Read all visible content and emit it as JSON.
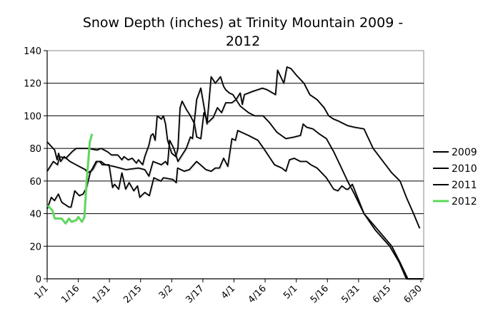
{
  "chart_data": {
    "type": "line",
    "title_lines": [
      "Snow Depth (inches) at Trinity Mountain 2009 -",
      "2012"
    ],
    "xlabel": "",
    "ylabel": "",
    "x_unit": "days since Jan 1",
    "xlim": [
      0,
      181.5
    ],
    "ylim": [
      0,
      140
    ],
    "yticks": [
      0,
      20,
      40,
      60,
      80,
      100,
      120,
      140
    ],
    "xticks": [
      {
        "day": 0,
        "label": "1/1"
      },
      {
        "day": 15,
        "label": "1/16"
      },
      {
        "day": 30,
        "label": "1/31"
      },
      {
        "day": 45,
        "label": "2/15"
      },
      {
        "day": 60,
        "label": "3/2"
      },
      {
        "day": 75,
        "label": "3/17"
      },
      {
        "day": 90,
        "label": "4/1"
      },
      {
        "day": 105,
        "label": "4/16"
      },
      {
        "day": 120,
        "label": "5/1"
      },
      {
        "day": 135,
        "label": "5/16"
      },
      {
        "day": 150,
        "label": "5/31"
      },
      {
        "day": 165,
        "label": "6/15"
      },
      {
        "day": 180,
        "label": "6/30"
      }
    ],
    "grid": "horizontal",
    "legend_position": "right",
    "series": [
      {
        "name": "2009",
        "color": "#000000",
        "points": [
          [
            0,
            66
          ],
          [
            3,
            72
          ],
          [
            5,
            70
          ],
          [
            6,
            75
          ],
          [
            9,
            74
          ],
          [
            12,
            78
          ],
          [
            14,
            80
          ],
          [
            20,
            80
          ],
          [
            24,
            79
          ],
          [
            26,
            80
          ],
          [
            29,
            78
          ],
          [
            31,
            76
          ],
          [
            34,
            76
          ],
          [
            36,
            73
          ],
          [
            37,
            75
          ],
          [
            39,
            73
          ],
          [
            41,
            74
          ],
          [
            43,
            71
          ],
          [
            44,
            73
          ],
          [
            46,
            70
          ],
          [
            47,
            75
          ],
          [
            49,
            82
          ],
          [
            50,
            88
          ],
          [
            51,
            89
          ],
          [
            52,
            85
          ],
          [
            53,
            100
          ],
          [
            55,
            98
          ],
          [
            56,
            100
          ],
          [
            57,
            95
          ],
          [
            58,
            85
          ],
          [
            60,
            77
          ],
          [
            62,
            75
          ],
          [
            63,
            80
          ],
          [
            64,
            105
          ],
          [
            65,
            109
          ],
          [
            67,
            104
          ],
          [
            69,
            100
          ],
          [
            71,
            95
          ],
          [
            72,
            87
          ],
          [
            74,
            86
          ],
          [
            75.5,
            102
          ],
          [
            77.5,
            96
          ],
          [
            80,
            99
          ],
          [
            82,
            105
          ],
          [
            84,
            102
          ],
          [
            86,
            108
          ],
          [
            89,
            108
          ],
          [
            91,
            110
          ],
          [
            93,
            114
          ],
          [
            94,
            107
          ],
          [
            95,
            113
          ],
          [
            99,
            115
          ],
          [
            103.7,
            117
          ],
          [
            106,
            116
          ],
          [
            110,
            113
          ],
          [
            111,
            128
          ],
          [
            114,
            120
          ],
          [
            115.5,
            130
          ],
          [
            117.4,
            129
          ],
          [
            120,
            125
          ],
          [
            123.7,
            120
          ],
          [
            126.5,
            113
          ],
          [
            130,
            110
          ],
          [
            133.4,
            105
          ],
          [
            135.6,
            100
          ],
          [
            138,
            98
          ],
          [
            140,
            97
          ],
          [
            144.7,
            94
          ],
          [
            148,
            93
          ],
          [
            152.6,
            92
          ],
          [
            157,
            80
          ],
          [
            163,
            70
          ],
          [
            166,
            65
          ],
          [
            170,
            60
          ],
          [
            173,
            50
          ],
          [
            176.5,
            40
          ],
          [
            179.4,
            31
          ]
        ]
      },
      {
        "name": "2010",
        "color": "#000000",
        "points": [
          [
            0,
            84
          ],
          [
            3.6,
            79
          ],
          [
            4.8,
            73
          ],
          [
            5.5,
            77
          ],
          [
            6.5,
            72
          ],
          [
            8.2,
            75
          ],
          [
            11,
            72
          ],
          [
            13.9,
            70
          ],
          [
            18.4,
            67
          ],
          [
            19.6,
            65
          ],
          [
            22,
            67
          ],
          [
            24.1,
            72
          ],
          [
            26,
            72
          ],
          [
            28,
            70
          ],
          [
            32,
            69
          ],
          [
            38,
            67
          ],
          [
            44,
            68
          ],
          [
            47,
            67
          ],
          [
            49,
            63
          ],
          [
            51,
            72
          ],
          [
            55,
            70
          ],
          [
            57,
            72
          ],
          [
            58,
            70
          ],
          [
            59,
            85
          ],
          [
            61,
            80
          ],
          [
            63,
            72
          ],
          [
            65,
            76
          ],
          [
            67,
            80
          ],
          [
            69,
            87
          ],
          [
            70,
            86
          ],
          [
            72,
            110
          ],
          [
            74,
            117
          ],
          [
            77,
            95
          ],
          [
            79,
            124
          ],
          [
            81,
            120
          ],
          [
            83.5,
            124
          ],
          [
            85,
            118
          ],
          [
            86,
            116
          ],
          [
            87.8,
            114
          ],
          [
            89.5,
            113
          ],
          [
            93,
            106
          ],
          [
            97,
            102
          ],
          [
            100,
            100
          ],
          [
            104,
            100
          ],
          [
            107,
            96
          ],
          [
            110.6,
            90
          ],
          [
            115,
            86
          ],
          [
            119,
            87
          ],
          [
            122,
            88
          ],
          [
            123.3,
            95
          ],
          [
            125,
            93
          ],
          [
            128,
            92
          ],
          [
            131,
            89
          ],
          [
            134.5,
            86
          ],
          [
            138,
            78
          ],
          [
            141,
            70
          ],
          [
            144.7,
            60
          ],
          [
            148,
            52
          ],
          [
            152.6,
            40
          ],
          [
            158,
            30
          ],
          [
            165,
            20
          ],
          [
            169.6,
            10
          ],
          [
            173,
            0
          ],
          [
            181,
            0
          ]
        ]
      },
      {
        "name": "2011",
        "color": "#000000",
        "points": [
          [
            0,
            43
          ],
          [
            2,
            50
          ],
          [
            3.5,
            48
          ],
          [
            5.4,
            52
          ],
          [
            7,
            47
          ],
          [
            10.5,
            44
          ],
          [
            11.5,
            44
          ],
          [
            13.3,
            54
          ],
          [
            15.5,
            51
          ],
          [
            17.3,
            52
          ],
          [
            19,
            56
          ],
          [
            20.7,
            65
          ],
          [
            23.6,
            72
          ],
          [
            25.3,
            72
          ],
          [
            26.5,
            70
          ],
          [
            29.8,
            70
          ],
          [
            31.5,
            56
          ],
          [
            32.5,
            58
          ],
          [
            34.4,
            55
          ],
          [
            36,
            65
          ],
          [
            37.8,
            55
          ],
          [
            39.5,
            59
          ],
          [
            41.7,
            54
          ],
          [
            43.5,
            57
          ],
          [
            44.6,
            50
          ],
          [
            47,
            53
          ],
          [
            49.2,
            51
          ],
          [
            51.4,
            62
          ],
          [
            54.8,
            60
          ],
          [
            56,
            62
          ],
          [
            60.5,
            61
          ],
          [
            62.2,
            59
          ],
          [
            62.8,
            68
          ],
          [
            66,
            66
          ],
          [
            68.5,
            67
          ],
          [
            72,
            72
          ],
          [
            76.5,
            67
          ],
          [
            79,
            66
          ],
          [
            81,
            68
          ],
          [
            83,
            68
          ],
          [
            85,
            74
          ],
          [
            87,
            69
          ],
          [
            89,
            86
          ],
          [
            90.7,
            85
          ],
          [
            91.8,
            91
          ],
          [
            93.5,
            90
          ],
          [
            97,
            88
          ],
          [
            101.5,
            85
          ],
          [
            104.8,
            79
          ],
          [
            109.5,
            70
          ],
          [
            113,
            68
          ],
          [
            115,
            66
          ],
          [
            116.7,
            73
          ],
          [
            119,
            74
          ],
          [
            122,
            72
          ],
          [
            125,
            72
          ],
          [
            127,
            70
          ],
          [
            130,
            68
          ],
          [
            134.5,
            62
          ],
          [
            138,
            55
          ],
          [
            140,
            54
          ],
          [
            142,
            57
          ],
          [
            144,
            55
          ],
          [
            145,
            55
          ],
          [
            147,
            58
          ],
          [
            152.6,
            40
          ],
          [
            160,
            29
          ],
          [
            166,
            20
          ],
          [
            170,
            10
          ],
          [
            173.7,
            0
          ],
          [
            181,
            0
          ]
        ]
      },
      {
        "name": "2012",
        "color": "#5ad85a",
        "points": [
          [
            0.2,
            45
          ],
          [
            2.5,
            42
          ],
          [
            3.6,
            37
          ],
          [
            7,
            37
          ],
          [
            8.8,
            34
          ],
          [
            10.5,
            37
          ],
          [
            11.7,
            35
          ],
          [
            14,
            36
          ],
          [
            15,
            38
          ],
          [
            16.7,
            35
          ],
          [
            17.9,
            38
          ],
          [
            19,
            60
          ],
          [
            20.5,
            84
          ],
          [
            21.6,
            89
          ]
        ]
      }
    ]
  }
}
